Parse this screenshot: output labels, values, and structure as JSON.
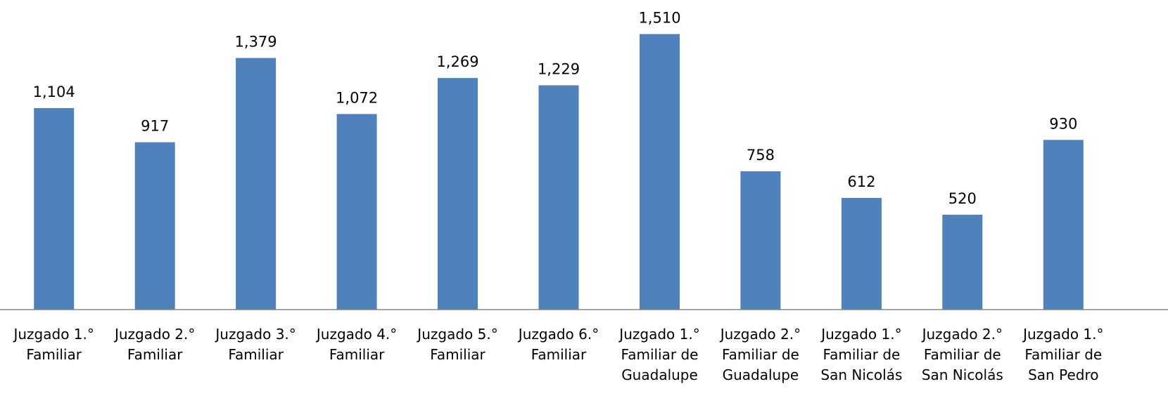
{
  "chart_data": {
    "type": "bar",
    "title": "",
    "xlabel": "",
    "ylabel": "",
    "ylim": [
      0,
      1600
    ],
    "grid": false,
    "legend": "none",
    "categories": [
      [
        "Juzgado 1.°",
        "Familiar"
      ],
      [
        "Juzgado 2.°",
        "Familiar"
      ],
      [
        "Juzgado 3.°",
        "Familiar"
      ],
      [
        "Juzgado 4.°",
        "Familiar"
      ],
      [
        "Juzgado 5.°",
        "Familiar"
      ],
      [
        "Juzgado 6.°",
        "Familiar"
      ],
      [
        "Juzgado 1.°",
        "Familiar de",
        "Guadalupe"
      ],
      [
        "Juzgado 2.°",
        "Familiar de",
        "Guadalupe"
      ],
      [
        "Juzgado 1.°",
        "Familiar de",
        "San Nicolás"
      ],
      [
        "Juzgado 2.°",
        "Familiar de",
        "San Nicolás"
      ],
      [
        "Juzgado 1.°",
        "Familiar de",
        "San Pedro"
      ]
    ],
    "values": [
      1104,
      917,
      1379,
      1072,
      1269,
      1229,
      1510,
      758,
      612,
      520,
      930
    ],
    "value_labels": [
      "1,104",
      "917",
      "1,379",
      "1,072",
      "1,269",
      "1,229",
      "1,510",
      "758",
      "612",
      "520",
      "930"
    ],
    "colors": {
      "bar": "#4f81bd",
      "axis": "#868686"
    }
  }
}
